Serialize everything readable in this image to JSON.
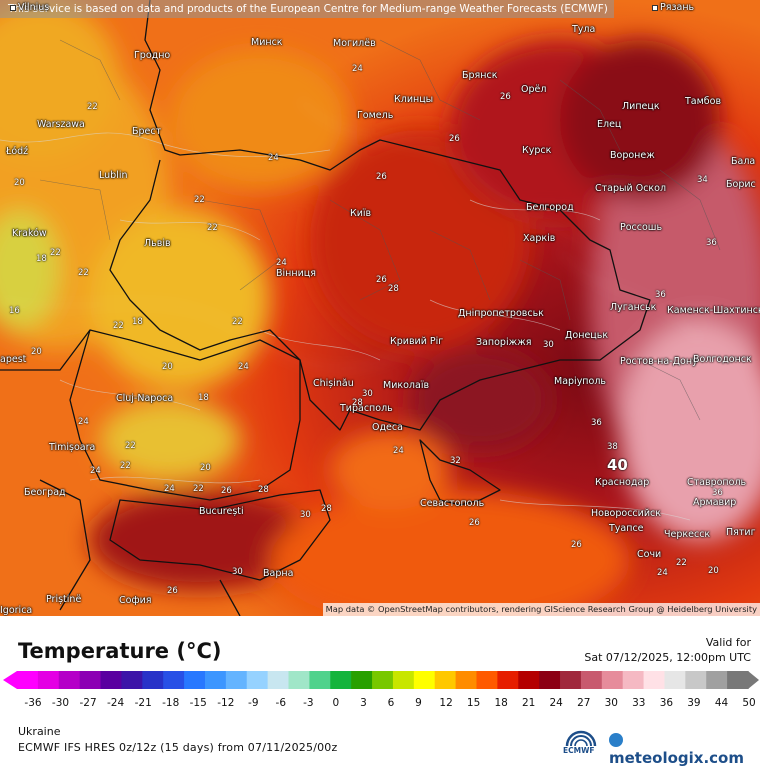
{
  "map": {
    "banner": "This service is based on data and products of the European Centre for Medium-range Weather Forecasts (ECMWF)",
    "attribution": "Map data © OpenStreetMap contributors, rendering GIScience Research Group @ Heidelberg University",
    "cities": [
      {
        "name": "Vilnius"
      },
      {
        "name": "Рязань"
      },
      {
        "name": "Гродно"
      },
      {
        "name": "Минск"
      },
      {
        "name": "Могилёв"
      },
      {
        "name": "Тула"
      },
      {
        "name": "Брянск"
      },
      {
        "name": "Орёл"
      },
      {
        "name": "Клинцы"
      },
      {
        "name": "Липецк"
      },
      {
        "name": "Тамбов"
      },
      {
        "name": "Warszawa"
      },
      {
        "name": "Брест"
      },
      {
        "name": "Гомель"
      },
      {
        "name": "Елец"
      },
      {
        "name": "Łódź"
      },
      {
        "name": "Lublin"
      },
      {
        "name": "Курск"
      },
      {
        "name": "Воронеж"
      },
      {
        "name": "Бала"
      },
      {
        "name": "Старый Оскол"
      },
      {
        "name": "Борис"
      },
      {
        "name": "Київ"
      },
      {
        "name": "Белгород"
      },
      {
        "name": "Kraków"
      },
      {
        "name": "Львів"
      },
      {
        "name": "Харків"
      },
      {
        "name": "Россошь"
      },
      {
        "name": "Вінниця"
      },
      {
        "name": "Дніпропетровськ"
      },
      {
        "name": "Луганськ"
      },
      {
        "name": "Каменск-Шахтинский"
      },
      {
        "name": "Кривий Ріг"
      },
      {
        "name": "Запоріжжя"
      },
      {
        "name": "Донецьк"
      },
      {
        "name": "Chișinău"
      },
      {
        "name": "Ростов-на-Дону"
      },
      {
        "name": "Волгодонск"
      },
      {
        "name": "Миколаїв"
      },
      {
        "name": "Cluj-Napoca"
      },
      {
        "name": "Маріуполь"
      },
      {
        "name": "Тирасполь"
      },
      {
        "name": "Одеса"
      },
      {
        "name": "Timișoara"
      },
      {
        "name": "Краснодар"
      },
      {
        "name": "Ставрополь"
      },
      {
        "name": "Београд"
      },
      {
        "name": "Армавир"
      },
      {
        "name": "Севастополь"
      },
      {
        "name": "București"
      },
      {
        "name": "Новороссийск"
      },
      {
        "name": "Туапсе"
      },
      {
        "name": "Черкесск"
      },
      {
        "name": "Пятиг"
      },
      {
        "name": "Сочи"
      },
      {
        "name": "Варна"
      },
      {
        "name": "Priștinë"
      },
      {
        "name": "София"
      },
      {
        "name": "Igorica"
      },
      {
        "name": "apest"
      }
    ],
    "temperature_labels": [
      "24",
      "22",
      "26",
      "24",
      "22",
      "20",
      "22",
      "24",
      "22",
      "18",
      "22",
      "16",
      "20",
      "22",
      "18",
      "22",
      "24",
      "26",
      "26",
      "28",
      "26",
      "30",
      "34",
      "36",
      "36",
      "20",
      "24",
      "18",
      "28",
      "30",
      "22",
      "24",
      "22",
      "20",
      "24",
      "22",
      "24",
      "26",
      "28",
      "30",
      "32",
      "36",
      "38",
      "36",
      "40",
      "26",
      "28",
      "26",
      "30",
      "26",
      "24",
      "22",
      "20"
    ]
  },
  "legend": {
    "title": "Temperature (°C)",
    "valid_label": "Valid for",
    "valid_time": "Sat 07/12/2025, 12:00pm UTC",
    "ticks": [
      "-36",
      "-30",
      "-27",
      "-24",
      "-21",
      "-18",
      "-15",
      "-12",
      "-9",
      "-6",
      "-3",
      "0",
      "3",
      "6",
      "9",
      "12",
      "15",
      "18",
      "21",
      "24",
      "27",
      "30",
      "33",
      "36",
      "39",
      "44",
      "50"
    ],
    "colors": [
      "#ff00ff",
      "#e400e4",
      "#b500c8",
      "#8c00b4",
      "#5a00a0",
      "#3c14a8",
      "#2832c8",
      "#2850e6",
      "#2878ff",
      "#3c96ff",
      "#64b4ff",
      "#96d2ff",
      "#c8e6f0",
      "#a0e6c8",
      "#50d28c",
      "#14b43c",
      "#28a000",
      "#78c800",
      "#c8e600",
      "#ffff00",
      "#ffc800",
      "#ff8c00",
      "#ff5a00",
      "#e61e00",
      "#b40000",
      "#8c0014",
      "#a0283c",
      "#c85a6e",
      "#e68c9b",
      "#f5b9c3",
      "#ffe1e6",
      "#e6e6e6",
      "#c8c8c8",
      "#a0a0a0",
      "#787878"
    ],
    "region": "Ukraine",
    "model": "ECMWF IFS HRES 0z/12z (15 days) from 07/11/2025/00z",
    "ecmwf_logo_text": "ECMWF",
    "brand": "meteologix.com"
  }
}
